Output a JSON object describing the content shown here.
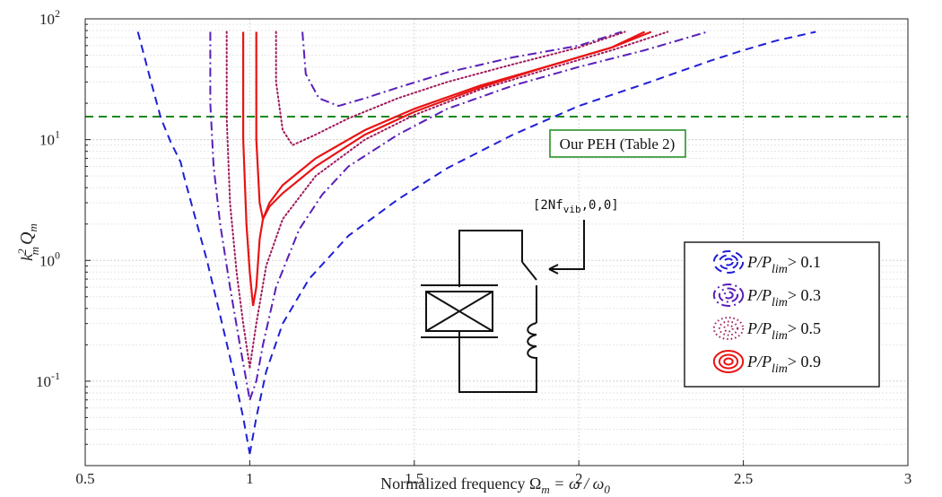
{
  "chart_data": {
    "type": "line",
    "x_axis": {
      "label": "Normalized frequency Ω",
      "label_sub": "m",
      "label_rest": " = ω / ω",
      "label_rest_sub": "0",
      "range": [
        0.5,
        3
      ],
      "ticks": [
        0.5,
        1,
        1.5,
        2,
        2.5,
        3
      ],
      "tick_labels": [
        "0.5",
        "1",
        "1.5",
        "2",
        "2.5",
        "3"
      ]
    },
    "y_axis": {
      "label_k": "k",
      "label_k_sup": "2",
      "label_k_sub": "m",
      "label_q": "Q",
      "label_q_sub": "m",
      "scale": "log",
      "range": [
        0.02,
        100
      ],
      "ticks": [
        0.1,
        1,
        10,
        100
      ],
      "tick_base": "10",
      "tick_exponents": [
        "-1",
        "0",
        "1",
        "2"
      ]
    },
    "grid": true,
    "minor_grid": true,
    "series": [
      {
        "name": "P/P_lim > 0.1",
        "color": "#1f1fd6",
        "style": "dashed",
        "left": [
          [
            0.66,
            78
          ],
          [
            0.7,
            30
          ],
          [
            0.73,
            15
          ],
          [
            0.76,
            9.5
          ],
          [
            0.79,
            6.5
          ],
          [
            0.8,
            5
          ],
          [
            0.83,
            2.5
          ],
          [
            0.87,
            1
          ],
          [
            0.91,
            0.35
          ],
          [
            0.95,
            0.12
          ],
          [
            0.98,
            0.05
          ],
          [
            1.0,
            0.025
          ]
        ],
        "right": [
          [
            1.0,
            0.025
          ],
          [
            1.02,
            0.05
          ],
          [
            1.05,
            0.12
          ],
          [
            1.1,
            0.3
          ],
          [
            1.18,
            0.7
          ],
          [
            1.3,
            1.6
          ],
          [
            1.45,
            3.2
          ],
          [
            1.6,
            5.8
          ],
          [
            1.8,
            11
          ],
          [
            2.0,
            19
          ],
          [
            2.2,
            29
          ],
          [
            2.4,
            45
          ],
          [
            2.5,
            55
          ],
          [
            2.6,
            66
          ],
          [
            2.72,
            78
          ]
        ]
      },
      {
        "name": "P/P_lim > 0.3",
        "color": "#5a1fb8",
        "style": "dashdot",
        "left": [
          [
            0.88,
            78
          ],
          [
            0.88,
            20
          ],
          [
            0.89,
            6
          ],
          [
            0.91,
            2
          ],
          [
            0.94,
            0.6
          ],
          [
            0.97,
            0.2
          ],
          [
            0.99,
            0.1
          ],
          [
            1.0,
            0.07
          ]
        ],
        "right": [
          [
            1.0,
            0.07
          ],
          [
            1.02,
            0.1
          ],
          [
            1.04,
            0.2
          ],
          [
            1.08,
            0.6
          ],
          [
            1.15,
            1.8
          ],
          [
            1.22,
            3.5
          ],
          [
            1.3,
            6
          ],
          [
            1.45,
            11
          ],
          [
            1.6,
            18
          ],
          [
            1.8,
            28
          ],
          [
            2.0,
            40
          ],
          [
            2.2,
            55
          ],
          [
            2.39,
            78
          ]
        ],
        "upper": [
          [
            1.16,
            78
          ],
          [
            1.17,
            35
          ],
          [
            1.21,
            22
          ],
          [
            1.27,
            19
          ],
          [
            1.35,
            22
          ],
          [
            1.45,
            27
          ],
          [
            1.6,
            36
          ],
          [
            1.8,
            48
          ],
          [
            2.0,
            60
          ],
          [
            2.13,
            78
          ]
        ]
      },
      {
        "name": "P/P_lim > 0.5",
        "color": "#a01a5a",
        "style": "dotted",
        "left": [
          [
            0.93,
            78
          ],
          [
            0.93,
            15
          ],
          [
            0.94,
            3
          ],
          [
            0.96,
            0.8
          ],
          [
            0.98,
            0.3
          ],
          [
            1.0,
            0.13
          ]
        ],
        "right": [
          [
            1.0,
            0.13
          ],
          [
            1.02,
            0.3
          ],
          [
            1.05,
            0.9
          ],
          [
            1.1,
            2.2
          ],
          [
            1.2,
            5
          ],
          [
            1.35,
            10
          ],
          [
            1.5,
            16
          ],
          [
            1.7,
            26
          ],
          [
            1.9,
            38
          ],
          [
            2.1,
            55
          ],
          [
            2.27,
            78
          ]
        ],
        "upper": [
          [
            1.08,
            78
          ],
          [
            1.08,
            30
          ],
          [
            1.1,
            12
          ],
          [
            1.13,
            9
          ],
          [
            1.2,
            11
          ],
          [
            1.3,
            15
          ],
          [
            1.45,
            22
          ],
          [
            1.6,
            30
          ],
          [
            1.8,
            42
          ],
          [
            2.0,
            58
          ],
          [
            2.14,
            78
          ]
        ]
      },
      {
        "name": "P/P_lim > 0.9",
        "color": "#e81414",
        "style": "solid",
        "left": [
          [
            0.98,
            78
          ],
          [
            0.98,
            10
          ],
          [
            0.99,
            2
          ],
          [
            1.0,
            0.8
          ],
          [
            1.01,
            0.42
          ]
        ],
        "right": [
          [
            1.01,
            0.42
          ],
          [
            1.02,
            0.6
          ],
          [
            1.03,
            1.5
          ],
          [
            1.04,
            2.2
          ],
          [
            1.06,
            3
          ],
          [
            1.1,
            4.2
          ],
          [
            1.2,
            7
          ],
          [
            1.35,
            12
          ],
          [
            1.5,
            18
          ],
          [
            1.7,
            28
          ],
          [
            1.9,
            40
          ],
          [
            2.1,
            58
          ],
          [
            2.22,
            78
          ]
        ],
        "upper": [
          [
            1.02,
            78
          ],
          [
            1.02,
            10
          ],
          [
            1.03,
            3
          ],
          [
            1.04,
            2.2
          ],
          [
            1.06,
            2.8
          ],
          [
            1.1,
            3.6
          ],
          [
            1.2,
            6
          ],
          [
            1.35,
            11
          ],
          [
            1.5,
            17
          ],
          [
            1.7,
            27
          ],
          [
            1.9,
            40
          ],
          [
            2.1,
            58
          ],
          [
            2.2,
            78
          ]
        ]
      }
    ],
    "reference_line": {
      "y": 15.5,
      "color": "#1a8a1a",
      "style": "dashed"
    },
    "annotation": {
      "text": "Our PEH (Table 2)",
      "color": "#1a8a1a"
    },
    "circuit_label": "[2Nf",
    "circuit_label_sub": "vib",
    "circuit_label_rest": ",0,0]",
    "legend": {
      "placement": "bottom-right",
      "items": [
        {
          "prefix": "P/P",
          "sub": "lim",
          "suffix": "> 0.1",
          "color": "#1f1fd6",
          "style": "dashed"
        },
        {
          "prefix": "P/P",
          "sub": "lim",
          "suffix": "> 0.3",
          "color": "#5a1fb8",
          "style": "dashdot"
        },
        {
          "prefix": "P/P",
          "sub": "lim",
          "suffix": "> 0.5",
          "color": "#a01a5a",
          "style": "dotted"
        },
        {
          "prefix": "P/P",
          "sub": "lim",
          "suffix": "> 0.9",
          "color": "#e81414",
          "style": "solid"
        }
      ]
    }
  }
}
